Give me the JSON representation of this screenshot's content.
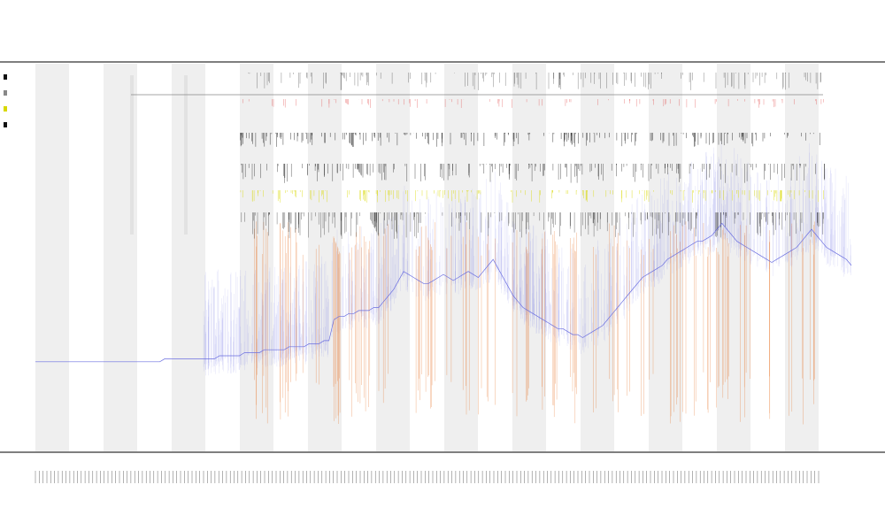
{
  "chart_data": {
    "type": "line",
    "title": "",
    "subtitle_lines": [
      "",
      ""
    ],
    "xlabel": "",
    "ylabel": "",
    "grid": false,
    "legend_position": "top-left",
    "x_ticks_count": 206,
    "colors": {
      "background": "#ffffff",
      "band": "#efefef",
      "main_series": "#6b6fe0",
      "vertical_events": "#e8742a",
      "black_ticks": "#111111",
      "yellow_ticks": "#d8d800",
      "red_ticks": "#e03a3a",
      "reference_line": "#888888",
      "axis": "#333333"
    },
    "series": [
      {
        "name": "",
        "color": "#6b6fe0",
        "values_note_free": true,
        "values": [
          18,
          18,
          18,
          18,
          18,
          18,
          18,
          18,
          18,
          18,
          18,
          18,
          18,
          18,
          18,
          18,
          18,
          18,
          18,
          18,
          18,
          18,
          18,
          18,
          18,
          18,
          19,
          19,
          19,
          19,
          19,
          19,
          19,
          19,
          19,
          19,
          19,
          20,
          20,
          20,
          20,
          20,
          21,
          21,
          21,
          21,
          22,
          22,
          22,
          22,
          22,
          23,
          23,
          23,
          23,
          24,
          24,
          24,
          25,
          25,
          32,
          33,
          33,
          34,
          34,
          35,
          35,
          35,
          36,
          36,
          38,
          40,
          42,
          45,
          48,
          47,
          46,
          45,
          44,
          44,
          45,
          46,
          47,
          46,
          45,
          46,
          47,
          48,
          47,
          46,
          48,
          50,
          52,
          49,
          46,
          43,
          40,
          38,
          36,
          35,
          34,
          33,
          32,
          31,
          30,
          29,
          29,
          28,
          27,
          27,
          26,
          27,
          28,
          29,
          30,
          32,
          34,
          36,
          38,
          40,
          42,
          44,
          46,
          47,
          48,
          49,
          50,
          52,
          53,
          54,
          55,
          56,
          57,
          58,
          58,
          59,
          60,
          62,
          64,
          62,
          60,
          58,
          57,
          56,
          55,
          54,
          53,
          52,
          51,
          52,
          53,
          54,
          55,
          56,
          58,
          60,
          62,
          60,
          58,
          56,
          55,
          54,
          53,
          52,
          50
        ]
      }
    ],
    "legend": [
      {
        "label": "",
        "color": "#111111"
      },
      {
        "label": "",
        "color": "#888888"
      },
      {
        "label": "",
        "color": "#d8d800"
      },
      {
        "label": "",
        "color": "#111111"
      }
    ]
  }
}
